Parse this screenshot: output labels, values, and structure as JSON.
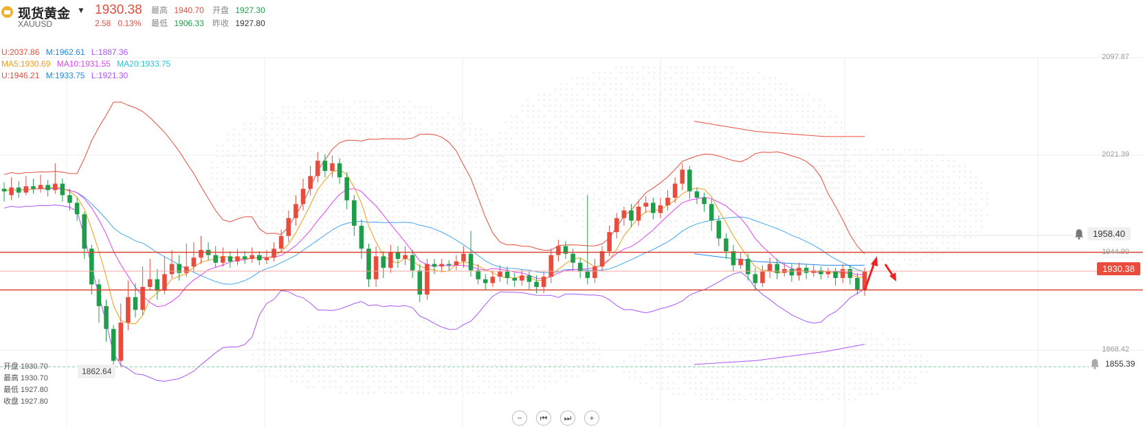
{
  "header": {
    "name": "现货黄金",
    "code": "XAUUSD",
    "price": "1930.38",
    "change": "2.58",
    "change_pct": "0.13%",
    "high_label": "最高",
    "high": "1940.70",
    "low_label": "最低",
    "low": "1906.33",
    "open_label": "开盘",
    "open": "1927.30",
    "prev_close_label": "昨收",
    "prev_close": "1927.80"
  },
  "indicators": {
    "boll1": {
      "u": "U:2037.86",
      "m": "M:1962.61",
      "l": "L:1887.36"
    },
    "ma": {
      "ma5": "MA5:1930.69",
      "ma10": "MA10:1931.55",
      "ma20": "MA20:1933.75"
    },
    "boll2": {
      "u": "U:1946.21",
      "m": "M:1933.75",
      "l": "L:1921.30"
    }
  },
  "ohlc_panel": {
    "open": "开盘 1930.70",
    "high": "最高 1930.70",
    "low": "最低 1927.80",
    "close": "收盘 1927.80"
  },
  "axis": {
    "ticks": [
      "2097.87",
      "2021.39",
      "1944.90",
      "1868.42"
    ],
    "tick_values": [
      2097.87,
      2021.39,
      1944.9,
      1868.42
    ]
  },
  "alerts": {
    "upper": "1958.40",
    "upper_value": 1958.4,
    "lower": "1855.39",
    "lower_value": 1855.39
  },
  "current_price_tag": "1930.38",
  "current_value": 1930.38,
  "lowest_marker": "1862.64",
  "lowest_value": 1862.64,
  "support_resistance": [
    1945.2,
    1915.6
  ],
  "colors": {
    "up": "#e74c3c",
    "down": "#1e9e4a",
    "ma5": "#f39c12",
    "ma10": "#e040fb",
    "ma20": "#42a5f5",
    "boll_upper": "#e74c3c",
    "boll_mid": "#1e88e5",
    "boll_lower": "#a855f7",
    "grid": "#eeeeee",
    "tag_bg": "#e74c3c"
  },
  "controls": [
    "zoom-out",
    "prev",
    "next",
    "zoom-in"
  ],
  "chart_data": {
    "type": "candlestick",
    "candles": [
      [
        1995,
        1993,
        2000,
        1985
      ],
      [
        1990,
        1996,
        2004,
        1986
      ],
      [
        1996,
        1992,
        2001,
        1988
      ],
      [
        1992,
        1997,
        2005,
        1990
      ],
      [
        1997,
        1995,
        2003,
        1991
      ],
      [
        1995,
        1998,
        2006,
        1992
      ],
      [
        1998,
        1994,
        2002,
        1989
      ],
      [
        1994,
        1999,
        2015,
        1991
      ],
      [
        1999,
        1990,
        2003,
        1985
      ],
      [
        1990,
        1984,
        1995,
        1978
      ],
      [
        1984,
        1975,
        1988,
        1970
      ],
      [
        1975,
        1948,
        1977,
        1940
      ],
      [
        1948,
        1920,
        1951,
        1912
      ],
      [
        1920,
        1903,
        1924,
        1890
      ],
      [
        1903,
        1885,
        1908,
        1875
      ],
      [
        1885,
        1860,
        1888,
        1852
      ],
      [
        1860,
        1890,
        1905,
        1855
      ],
      [
        1890,
        1910,
        1923,
        1884
      ],
      [
        1910,
        1900,
        1921,
        1894
      ],
      [
        1900,
        1918,
        1934,
        1896
      ],
      [
        1918,
        1924,
        1940,
        1915
      ],
      [
        1924,
        1915,
        1932,
        1908
      ],
      [
        1915,
        1928,
        1942,
        1912
      ],
      [
        1928,
        1936,
        1947,
        1925
      ],
      [
        1936,
        1929,
        1943,
        1923
      ],
      [
        1929,
        1934,
        1952,
        1926
      ],
      [
        1934,
        1941,
        1953,
        1930
      ],
      [
        1941,
        1947,
        1958,
        1936
      ],
      [
        1947,
        1943,
        1953,
        1939
      ],
      [
        1943,
        1937,
        1950,
        1933
      ],
      [
        1937,
        1942,
        1949,
        1934
      ],
      [
        1942,
        1938,
        1946,
        1933
      ],
      [
        1938,
        1942,
        1948,
        1935
      ],
      [
        1942,
        1940,
        1946,
        1936
      ],
      [
        1940,
        1943,
        1949,
        1937
      ],
      [
        1943,
        1939,
        1946,
        1935
      ],
      [
        1939,
        1941,
        1947,
        1936
      ],
      [
        1941,
        1948,
        1953,
        1938
      ],
      [
        1948,
        1958,
        1963,
        1945
      ],
      [
        1958,
        1972,
        1978,
        1953
      ],
      [
        1972,
        1983,
        1990,
        1966
      ],
      [
        1983,
        1995,
        2003,
        1978
      ],
      [
        1995,
        2005,
        2013,
        1990
      ],
      [
        2005,
        2017,
        2024,
        2000
      ],
      [
        2017,
        2009,
        2022,
        2004
      ],
      [
        2009,
        2015,
        2021,
        2004
      ],
      [
        2015,
        2004,
        2019,
        1999
      ],
      [
        2004,
        1986,
        2008,
        1979
      ],
      [
        1986,
        1966,
        1990,
        1958
      ],
      [
        1966,
        1948,
        1971,
        1940
      ],
      [
        1948,
        1924,
        1952,
        1918
      ],
      [
        1924,
        1942,
        1950,
        1918
      ],
      [
        1942,
        1933,
        1946,
        1925
      ],
      [
        1933,
        1945,
        1951,
        1929
      ],
      [
        1945,
        1940,
        1950,
        1933
      ],
      [
        1940,
        1943,
        1950,
        1935
      ],
      [
        1943,
        1931,
        1947,
        1925
      ],
      [
        1931,
        1912,
        1936,
        1906
      ],
      [
        1912,
        1936,
        1940,
        1908
      ],
      [
        1936,
        1934,
        1940,
        1928
      ],
      [
        1934,
        1936,
        1940,
        1930
      ],
      [
        1936,
        1935,
        1939,
        1931
      ],
      [
        1935,
        1938,
        1943,
        1931
      ],
      [
        1938,
        1944,
        1950,
        1933
      ],
      [
        1944,
        1931,
        1962,
        1926
      ],
      [
        1931,
        1924,
        1936,
        1920
      ],
      [
        1924,
        1921,
        1928,
        1916
      ],
      [
        1921,
        1926,
        1931,
        1918
      ],
      [
        1926,
        1930,
        1935,
        1922
      ],
      [
        1930,
        1925,
        1934,
        1920
      ],
      [
        1925,
        1923,
        1929,
        1918
      ],
      [
        1923,
        1927,
        1932,
        1919
      ],
      [
        1927,
        1922,
        1930,
        1916
      ],
      [
        1922,
        1918,
        1927,
        1913
      ],
      [
        1918,
        1926,
        1930,
        1913
      ],
      [
        1926,
        1943,
        1948,
        1921
      ],
      [
        1943,
        1950,
        1955,
        1938
      ],
      [
        1950,
        1944,
        1954,
        1940
      ],
      [
        1944,
        1937,
        1948,
        1930
      ],
      [
        1937,
        1930,
        1941,
        1925
      ],
      [
        1930,
        1925,
        1990,
        1920
      ],
      [
        1925,
        1934,
        1940,
        1921
      ],
      [
        1934,
        1946,
        1950,
        1930
      ],
      [
        1946,
        1961,
        1966,
        1942
      ],
      [
        1961,
        1972,
        1976,
        1956
      ],
      [
        1972,
        1978,
        1981,
        1966
      ],
      [
        1978,
        1970,
        1983,
        1965
      ],
      [
        1970,
        1981,
        1985,
        1966
      ],
      [
        1981,
        1984,
        1989,
        1976
      ],
      [
        1984,
        1976,
        1988,
        1971
      ],
      [
        1976,
        1982,
        1988,
        1972
      ],
      [
        1982,
        1988,
        1994,
        1978
      ],
      [
        1988,
        1999,
        2004,
        1984
      ],
      [
        1999,
        2010,
        2015,
        1994
      ],
      [
        2010,
        1993,
        2013,
        1987
      ],
      [
        1993,
        1988,
        1996,
        1983
      ],
      [
        1988,
        1983,
        1992,
        1977
      ],
      [
        1983,
        1970,
        1987,
        1962
      ],
      [
        1970,
        1956,
        1974,
        1950
      ],
      [
        1956,
        1946,
        1960,
        1940
      ],
      [
        1946,
        1935,
        1951,
        1930
      ],
      [
        1935,
        1940,
        1945,
        1932
      ],
      [
        1940,
        1928,
        1944,
        1923
      ],
      [
        1928,
        1921,
        1933,
        1915
      ],
      [
        1921,
        1930,
        1935,
        1918
      ],
      [
        1930,
        1936,
        1941,
        1925
      ],
      [
        1936,
        1929,
        1940,
        1924
      ],
      [
        1929,
        1932,
        1937,
        1926
      ],
      [
        1932,
        1927,
        1936,
        1922
      ],
      [
        1927,
        1933,
        1937,
        1923
      ],
      [
        1933,
        1929,
        1936,
        1924
      ],
      [
        1929,
        1931,
        1935,
        1926
      ],
      [
        1931,
        1928,
        1934,
        1924
      ],
      [
        1928,
        1930,
        1933,
        1925
      ],
      [
        1930,
        1925,
        1933,
        1919
      ],
      [
        1925,
        1932,
        1936,
        1921
      ],
      [
        1932,
        1925,
        1935,
        1920
      ],
      [
        1925,
        1916,
        1929,
        1912
      ],
      [
        1916,
        1930,
        1933,
        1911
      ]
    ]
  }
}
